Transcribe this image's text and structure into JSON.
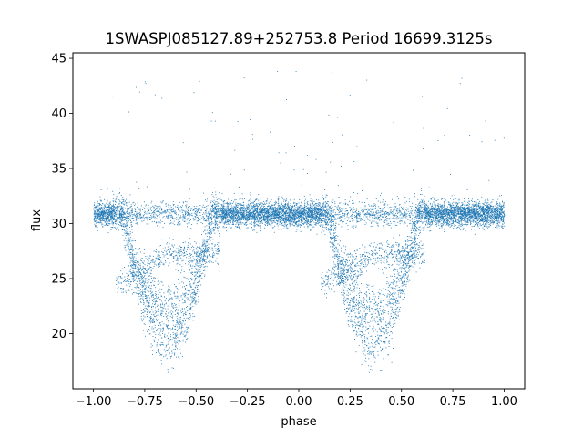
{
  "chart_data": {
    "type": "scatter",
    "title": "1SWASPJ085127.89+252753.8 Period 16699.3125s",
    "xlabel": "phase",
    "ylabel": "flux",
    "xlim": [
      -1.1,
      1.1
    ],
    "ylim": [
      15.0,
      45.5
    ],
    "x_ticks": [
      -1.0,
      -0.75,
      -0.5,
      -0.25,
      0.0,
      0.25,
      0.5,
      0.75,
      1.0
    ],
    "x_tick_labels": [
      "−1.00",
      "−0.75",
      "−0.50",
      "−0.25",
      "0.00",
      "0.25",
      "0.50",
      "0.75",
      "1.00"
    ],
    "y_ticks": [
      20,
      25,
      30,
      35,
      40,
      45
    ],
    "y_tick_labels": [
      "20",
      "25",
      "30",
      "35",
      "40",
      "45"
    ],
    "grid": false,
    "legend": "none",
    "marker_color": "#1f77b4",
    "x_range": [
      -1.0,
      1.0
    ],
    "baseline_flux": 30.9,
    "baseline_scatter": 0.55,
    "eclipse_centers": [
      -0.64,
      0.36
    ],
    "eclipse_min_flux": 18.0,
    "eclipse_half_width": 0.22,
    "secondary_branch_flux": 27.3,
    "point_count": 11000,
    "outlier_flux_range": [
      32,
      44
    ]
  }
}
